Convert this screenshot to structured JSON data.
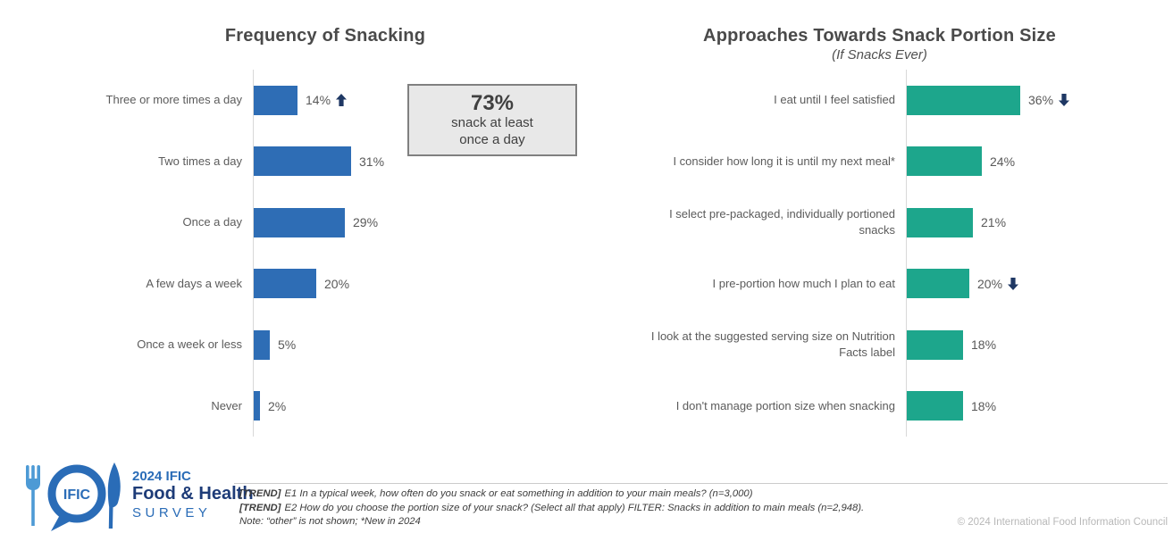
{
  "colors": {
    "bar_blue": "#2E6DB5",
    "bar_teal": "#1DA68C",
    "trend_arrow_navy": "#1F3864",
    "title_gray": "#4A4A4A",
    "label_gray": "#595959",
    "callout_bg": "#E8E8E8",
    "callout_border": "#808080",
    "logo_blue": "#2A6CB7",
    "logo_light_blue": "#4D9AD5",
    "logo_navy": "#1E3C78"
  },
  "chart_data": [
    {
      "type": "bar",
      "orientation": "horizontal",
      "title": "Frequency of Snacking",
      "categories": [
        "Three or more times a day",
        "Two times a day",
        "Once a day",
        "A few days a week",
        "Once a week or less",
        "Never"
      ],
      "values": [
        14,
        31,
        29,
        20,
        5,
        2
      ],
      "value_labels": [
        "14%",
        "31%",
        "29%",
        "20%",
        "5%",
        "2%"
      ],
      "trend_markers": [
        "up",
        "",
        "",
        "",
        "",
        ""
      ],
      "bar_color": "#2E6DB5",
      "grid": false,
      "value_axis_shown": false,
      "xlim": [
        0,
        40
      ]
    },
    {
      "type": "bar",
      "orientation": "horizontal",
      "title": "Approaches Towards Snack Portion Size",
      "subtitle": "(If Snacks Ever)",
      "categories": [
        "I eat until I feel satisfied",
        "I consider how long it is until my next meal*",
        "I select pre-packaged, individually portioned\nsnacks",
        "I pre-portion how much I plan to eat",
        "I look at the suggested serving size on Nutrition\nFacts label",
        "I don't manage portion size when snacking"
      ],
      "values": [
        36,
        24,
        21,
        20,
        18,
        18
      ],
      "value_labels": [
        "36%",
        "24%",
        "21%",
        "20%",
        "18%",
        "18%"
      ],
      "trend_markers": [
        "down",
        "",
        "",
        "down",
        "",
        ""
      ],
      "bar_color": "#1DA68C",
      "grid": false,
      "value_axis_shown": false,
      "xlim": [
        0,
        40
      ]
    }
  ],
  "callout": {
    "value": "73%",
    "text_lines": [
      "snack at least",
      "once a day"
    ]
  },
  "footer": {
    "logo": {
      "badge": "IFIC",
      "line1": "2024 IFIC",
      "line2": "Food & Health",
      "line3": "SURVEY"
    },
    "notes": [
      {
        "tag": "[TREND]",
        "text": "E1 In a typical week, how often do you snack or eat something in addition to your main meals? (n=3,000)"
      },
      {
        "tag": "[TREND]",
        "text": "E2 How do you choose the portion size of your snack? (Select all that apply) FILTER: Snacks in addition to main meals (n=2,948)."
      },
      {
        "tag": "",
        "text": "Note: “other” is not shown; *New in 2024"
      }
    ],
    "copyright": "© 2024 International Food Information Council"
  }
}
